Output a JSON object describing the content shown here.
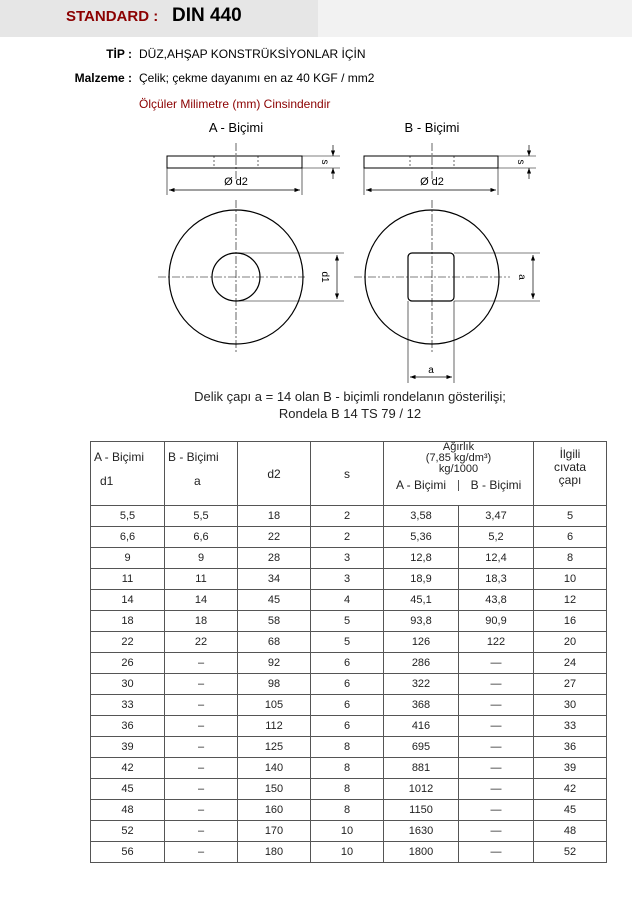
{
  "header": {
    "label": "STANDARD :",
    "value": "DIN 440"
  },
  "info": [
    {
      "key": "TİP :",
      "value": "DÜZ,AHŞAP KONSTRÜKSİYONLAR İÇİN"
    },
    {
      "key": "Malzeme :",
      "value": "Çelik; çekme dayanımı en az 40 KGF / mm2"
    }
  ],
  "note": "Ölçüler Milimetre (mm) Cinsindendir",
  "drawing": {
    "title_a": "A - Biçimi",
    "title_b": "B - Biçimi",
    "d2": "Ø d2",
    "s": "s",
    "d1": "d1",
    "a": "a",
    "caption1": "Delik çapı a = 14 olan B - biçimli rondelanın gösterilişi;",
    "caption2": "Rondela B 14 TS 79 / 12"
  },
  "table": {
    "headers": {
      "a_form": "A - Biçimi",
      "d1": "d1",
      "b_form": "B - Biçimi",
      "a": "a",
      "d2": "d2",
      "s": "s",
      "weight": "Ağırlık",
      "density": "(7,85 kg/dm³)",
      "unit": "kg/1000",
      "wa": "A - Biçimi",
      "wb": "B - Biçimi",
      "bolt": "İlgili cıvata çapı"
    },
    "rows": [
      [
        "5,5",
        "5,5",
        "18",
        "2",
        "3,58",
        "3,47",
        "5"
      ],
      [
        "6,6",
        "6,6",
        "22",
        "2",
        "5,36",
        "5,2",
        "6"
      ],
      [
        "9",
        "9",
        "28",
        "3",
        "12,8",
        "12,4",
        "8"
      ],
      [
        "11",
        "11",
        "34",
        "3",
        "18,9",
        "18,3",
        "10"
      ],
      [
        "14",
        "14",
        "45",
        "4",
        "45,1",
        "43,8",
        "12"
      ],
      [
        "18",
        "18",
        "58",
        "5",
        "93,8",
        "90,9",
        "16"
      ],
      [
        "22",
        "22",
        "68",
        "5",
        "126",
        "122",
        "20"
      ],
      [
        "26",
        "–",
        "92",
        "6",
        "286",
        "—",
        "24"
      ],
      [
        "30",
        "–",
        "98",
        "6",
        "322",
        "—",
        "27"
      ],
      [
        "33",
        "–",
        "105",
        "6",
        "368",
        "—",
        "30"
      ],
      [
        "36",
        "–",
        "112",
        "6",
        "416",
        "—",
        "33"
      ],
      [
        "39",
        "–",
        "125",
        "8",
        "695",
        "—",
        "36"
      ],
      [
        "42",
        "–",
        "140",
        "8",
        "881",
        "—",
        "39"
      ],
      [
        "45",
        "–",
        "150",
        "8",
        "1012",
        "—",
        "42"
      ],
      [
        "48",
        "–",
        "160",
        "8",
        "1150",
        "—",
        "45"
      ],
      [
        "52",
        "–",
        "170",
        "10",
        "1630",
        "—",
        "48"
      ],
      [
        "56",
        "–",
        "180",
        "10",
        "1800",
        "—",
        "52"
      ]
    ]
  }
}
